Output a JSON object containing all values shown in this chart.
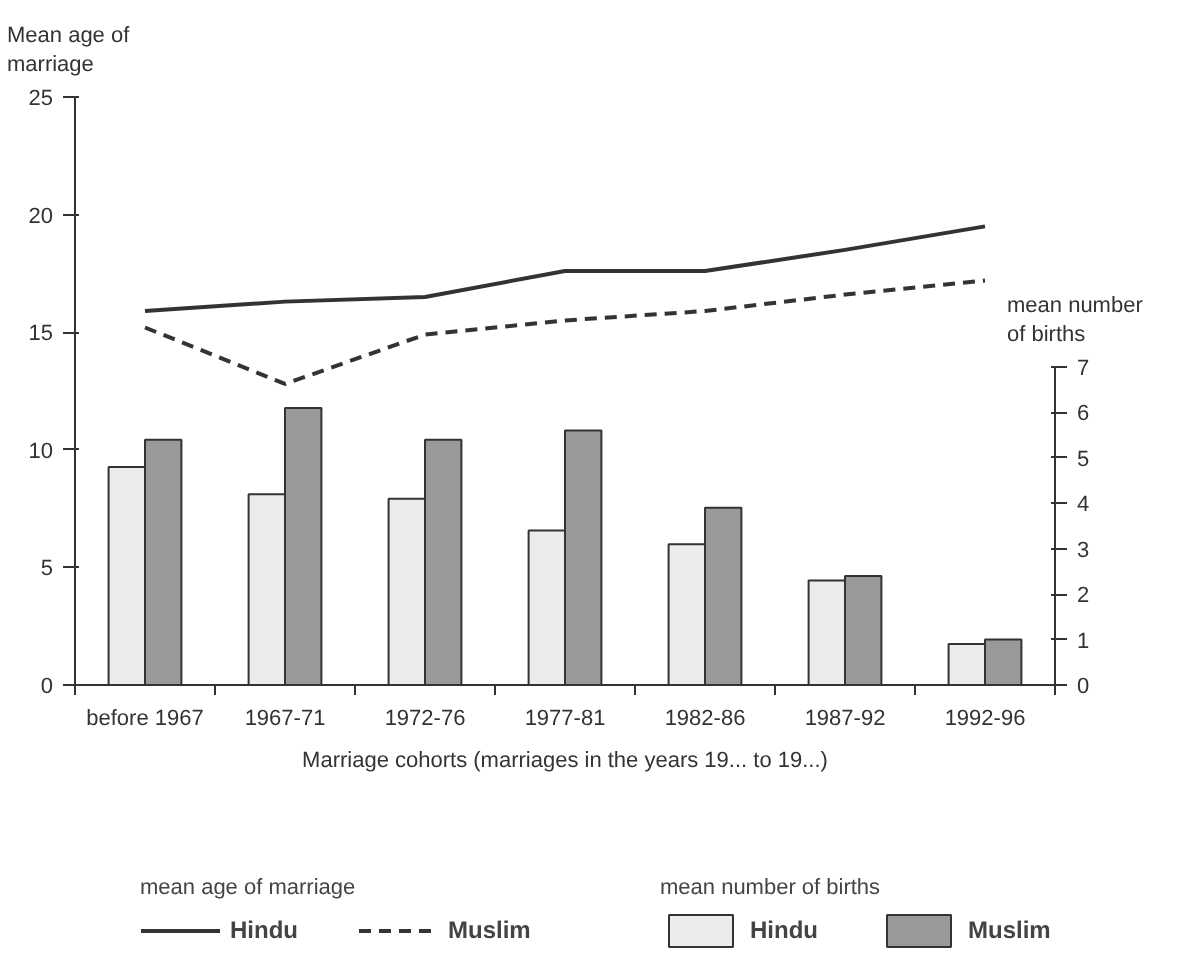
{
  "chart_data": {
    "type": "bar",
    "categories": [
      "before 1967",
      "1967-71",
      "1972-76",
      "1977-81",
      "1982-86",
      "1987-92",
      "1992-96"
    ],
    "xlabel": "Marriage cohorts (marriages in the years 19... to 19...)",
    "ylabel": "Mean age of marriage",
    "y2label": "mean number of births",
    "ylim": [
      0,
      25
    ],
    "yticks": [
      0,
      5,
      10,
      15,
      20,
      25
    ],
    "y2lim": [
      0,
      7
    ],
    "y2ticks": [
      0,
      1,
      2,
      3,
      4,
      5,
      6,
      7
    ],
    "grid": false,
    "legend": "bottom",
    "annotations": [
      "mean age of marriage",
      "mean number of births"
    ],
    "series": [
      {
        "name": "Hindu",
        "type": "line",
        "line_style": "solid",
        "color": "#333333",
        "values": [
          15.9,
          16.3,
          16.5,
          17.6,
          17.6,
          18.5,
          19.5
        ]
      },
      {
        "name": "Muslim",
        "type": "line",
        "line_style": "dashed",
        "color": "#333333",
        "values": [
          15.2,
          12.8,
          14.9,
          15.5,
          15.9,
          16.6,
          17.2
        ]
      },
      {
        "name": "Hindu",
        "axis": "y2",
        "color": "#ececec",
        "values": [
          4.8,
          4.2,
          4.1,
          3.4,
          3.1,
          2.3,
          0.9
        ]
      },
      {
        "name": "Muslim",
        "axis": "y2",
        "color": "#999999",
        "values": [
          5.4,
          6.1,
          5.4,
          5.6,
          3.9,
          2.4,
          1.0
        ]
      }
    ]
  }
}
